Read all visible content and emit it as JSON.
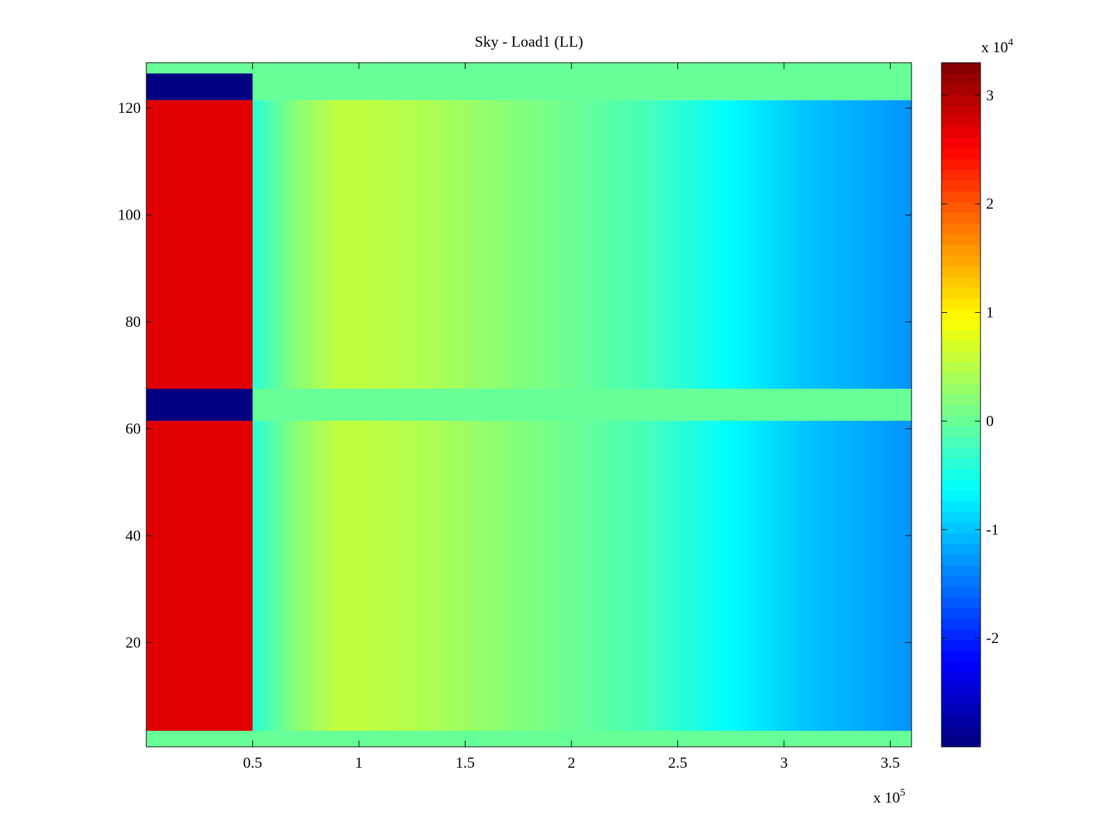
{
  "chart_data": {
    "type": "heatmap",
    "title": "Sky - Load1 (LL)",
    "xlabel": "",
    "ylabel": "",
    "x_multiplier_label": {
      "base": "x 10",
      "exponent": "5"
    },
    "xlim": [
      0,
      360000
    ],
    "ylim": [
      0.5,
      128.5
    ],
    "x_ticks": [
      {
        "value": 50000,
        "label": "0.5"
      },
      {
        "value": 100000,
        "label": "1"
      },
      {
        "value": 150000,
        "label": "1.5"
      },
      {
        "value": 200000,
        "label": "2"
      },
      {
        "value": 250000,
        "label": "2.5"
      },
      {
        "value": 300000,
        "label": "3"
      },
      {
        "value": 350000,
        "label": "3.5"
      }
    ],
    "y_ticks": [
      {
        "value": 20,
        "label": "20"
      },
      {
        "value": 40,
        "label": "40"
      },
      {
        "value": 60,
        "label": "60"
      },
      {
        "value": 80,
        "label": "80"
      },
      {
        "value": 100,
        "label": "100"
      },
      {
        "value": 120,
        "label": "120"
      }
    ],
    "colormap": "jet",
    "color_range": [
      -30000,
      33000
    ],
    "colorbar": {
      "ticks": [
        {
          "value": -20000,
          "label": "-2"
        },
        {
          "value": -10000,
          "label": "-1"
        },
        {
          "value": 0,
          "label": "0"
        },
        {
          "value": 10000,
          "label": "1"
        },
        {
          "value": 20000,
          "label": "2"
        },
        {
          "value": 30000,
          "label": "3"
        }
      ],
      "multiplier_label": {
        "base": "x 10",
        "exponent": "4"
      }
    },
    "regions": [
      {
        "x": [
          0,
          50000
        ],
        "y": [
          0.5,
          3.5
        ],
        "value": 0,
        "note": "empty row band"
      },
      {
        "x": [
          0,
          50000
        ],
        "y": [
          3.5,
          61.5
        ],
        "value": 27000,
        "note": "high values"
      },
      {
        "x": [
          0,
          50000
        ],
        "y": [
          61.5,
          67.5
        ],
        "value": -30000
      },
      {
        "x": [
          0,
          50000
        ],
        "y": [
          67.5,
          121.5
        ],
        "value": 27000
      },
      {
        "x": [
          0,
          50000
        ],
        "y": [
          121.5,
          126.5
        ],
        "value": -30000
      },
      {
        "x": [
          0,
          50000
        ],
        "y": [
          126.5,
          128.5
        ],
        "value": 0
      },
      {
        "x": [
          50000,
          360000
        ],
        "y": [
          0.5,
          3.5
        ],
        "value": 0
      },
      {
        "x": [
          50000,
          360000
        ],
        "y": [
          61.5,
          67.5
        ],
        "value": 0
      },
      {
        "x": [
          50000,
          360000
        ],
        "y": [
          121.5,
          128.5
        ],
        "value": 0
      }
    ],
    "profile_rows": [
      [
        3.5,
        61.5
      ],
      [
        67.5,
        121.5
      ]
    ],
    "column_profile": [
      {
        "x": 50000,
        "value": -4000
      },
      {
        "x": 70000,
        "value": 2000
      },
      {
        "x": 90000,
        "value": 5500
      },
      {
        "x": 100000,
        "value": 5500
      },
      {
        "x": 130000,
        "value": 4500
      },
      {
        "x": 170000,
        "value": 2000
      },
      {
        "x": 205000,
        "value": 0
      },
      {
        "x": 240000,
        "value": -2500
      },
      {
        "x": 275000,
        "value": -6500
      },
      {
        "x": 310000,
        "value": -10000
      },
      {
        "x": 345000,
        "value": -12000
      },
      {
        "x": 360000,
        "value": -13000
      }
    ]
  }
}
